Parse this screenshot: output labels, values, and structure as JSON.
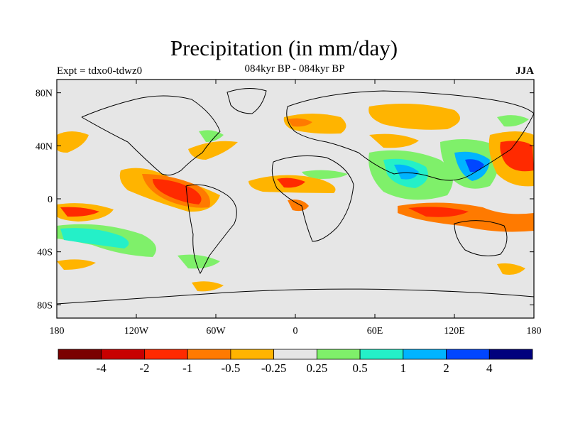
{
  "header": {
    "title": "Precipitation (in mm/day)",
    "left": "Expt = tdxo0-tdwz0",
    "center": "084kyr BP - 084kyr BP",
    "right": "JJA"
  },
  "axes": {
    "lon_ticks": [
      {
        "value": -180,
        "label": "180"
      },
      {
        "value": -120,
        "label": "120W"
      },
      {
        "value": -60,
        "label": "60W"
      },
      {
        "value": 0,
        "label": "0"
      },
      {
        "value": 60,
        "label": "60E"
      },
      {
        "value": 120,
        "label": "120E"
      },
      {
        "value": 180,
        "label": "180"
      }
    ],
    "lat_ticks": [
      {
        "value": 80,
        "label": "80N"
      },
      {
        "value": 40,
        "label": "40N"
      },
      {
        "value": 0,
        "label": "0"
      },
      {
        "value": -40,
        "label": "40S"
      },
      {
        "value": -80,
        "label": "80S"
      }
    ],
    "lon_range": [
      -180,
      180
    ],
    "lat_range": [
      -90,
      90
    ]
  },
  "colorbar": {
    "colors": [
      "#7a0000",
      "#c80000",
      "#ff2a00",
      "#ff7a00",
      "#ffb400",
      "#e6e6e6",
      "#7ff06a",
      "#24f0c8",
      "#00b4ff",
      "#0046ff",
      "#00007d"
    ],
    "labels": [
      "-4",
      "-2",
      "-1",
      "-0.5",
      "-0.25",
      "0.25",
      "0.5",
      "1",
      "2",
      "4"
    ]
  },
  "colors": {
    "background": "#e6e6e6",
    "coastline": "#000000"
  }
}
